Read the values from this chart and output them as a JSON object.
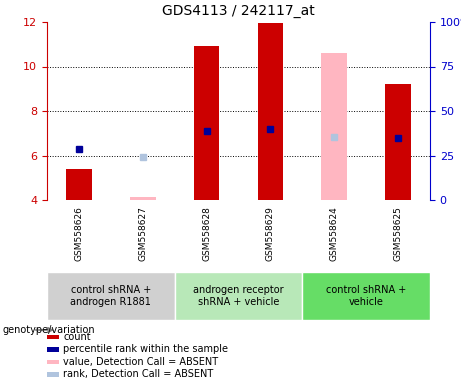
{
  "title": "GDS4113 / 242117_at",
  "samples": [
    "GSM558626",
    "GSM558627",
    "GSM558628",
    "GSM558629",
    "GSM558624",
    "GSM558625"
  ],
  "ylim": [
    4,
    12
  ],
  "yticks": [
    4,
    6,
    8,
    10,
    12
  ],
  "y2lim": [
    0,
    100
  ],
  "y2ticks": [
    0,
    25,
    50,
    75,
    100
  ],
  "y2ticklabels": [
    "0",
    "25",
    "50",
    "75",
    "100%"
  ],
  "red_bars": {
    "GSM558626": 5.4,
    "GSM558627": null,
    "GSM558628": 10.9,
    "GSM558629": 11.95,
    "GSM558624": null,
    "GSM558625": 9.2
  },
  "pink_bars": {
    "GSM558626": null,
    "GSM558627": 4.15,
    "GSM558628": null,
    "GSM558629": null,
    "GSM558624": 10.6,
    "GSM558625": null
  },
  "blue_markers": {
    "GSM558626": 6.3,
    "GSM558627": null,
    "GSM558628": 7.1,
    "GSM558629": 7.2,
    "GSM558624": null,
    "GSM558625": 6.8
  },
  "lightblue_markers": {
    "GSM558626": null,
    "GSM558627": 5.95,
    "GSM558628": null,
    "GSM558629": null,
    "GSM558624": 6.85,
    "GSM558625": null
  },
  "bar_width": 0.4,
  "bar_bottom": 4.0,
  "group_info": [
    {
      "samples_idx": [
        0,
        1
      ],
      "label": "control shRNA +\nandrogen R1881",
      "color": "#d0d0d0"
    },
    {
      "samples_idx": [
        2,
        3
      ],
      "label": "androgen receptor\nshRNA + vehicle",
      "color": "#b8e8b8"
    },
    {
      "samples_idx": [
        4,
        5
      ],
      "label": "control shRNA +\nvehicle",
      "color": "#66dd66"
    }
  ],
  "legend_items": [
    {
      "color": "#cc0000",
      "label": "count"
    },
    {
      "color": "#000099",
      "label": "percentile rank within the sample"
    },
    {
      "color": "#ffb6c1",
      "label": "value, Detection Call = ABSENT"
    },
    {
      "color": "#b0c4de",
      "label": "rank, Detection Call = ABSENT"
    }
  ],
  "axis_color_left": "#cc0000",
  "axis_color_right": "#0000cc",
  "sample_bg": "#d3d3d3"
}
